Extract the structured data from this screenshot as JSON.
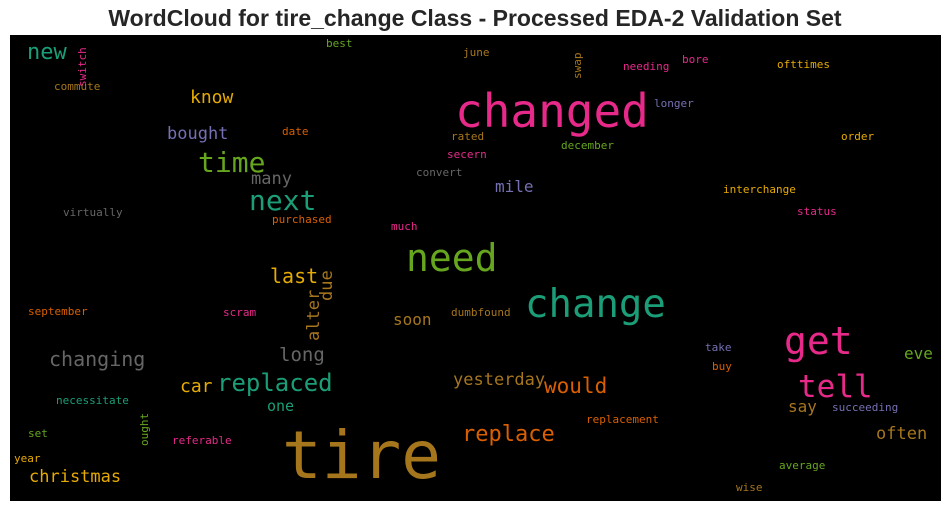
{
  "title": "WordCloud for tire_change Class - Processed EDA-2 Validation Set",
  "background_color": "#000000",
  "palette": [
    "#1b9e77",
    "#d95f02",
    "#7570b3",
    "#e7298a",
    "#66a61e",
    "#e6ab02",
    "#a6761d",
    "#666666"
  ],
  "words": {
    "tire": "tire",
    "changed": "changed",
    "change": "change",
    "need": "need",
    "get": "get",
    "tell": "tell",
    "time": "time",
    "next": "next",
    "replaced": "replaced",
    "replace": "replace",
    "would": "would",
    "new": "new",
    "changing": "changing",
    "last": "last",
    "long": "long",
    "yesterday": "yesterday",
    "christmas": "christmas",
    "know": "know",
    "car": "car",
    "often": "often",
    "many": "many",
    "bought": "bought",
    "alter": "alter",
    "due": "due",
    "soon": "soon",
    "mile": "mile",
    "one": "one",
    "say": "say",
    "eve": "eve",
    "switch": "switch",
    "best": "best",
    "june": "june",
    "swap": "swap",
    "needing": "needing",
    "bore": "bore",
    "ofttimes": "ofttimes",
    "commute": "commute",
    "longer": "longer",
    "rated": "rated",
    "date": "date",
    "order": "order",
    "december": "december",
    "secern": "secern",
    "convert": "convert",
    "interchange": "interchange",
    "virtually": "virtually",
    "purchased": "purchased",
    "status": "status",
    "much": "much",
    "september": "september",
    "scram": "scram",
    "dumbfound": "dumbfound",
    "take": "take",
    "buy": "buy",
    "necessitate": "necessitate",
    "ought": "ought",
    "succeeding": "succeeding",
    "set": "set",
    "referable": "referable",
    "replacement": "replacement",
    "year": "year",
    "average": "average",
    "wise": "wise"
  }
}
